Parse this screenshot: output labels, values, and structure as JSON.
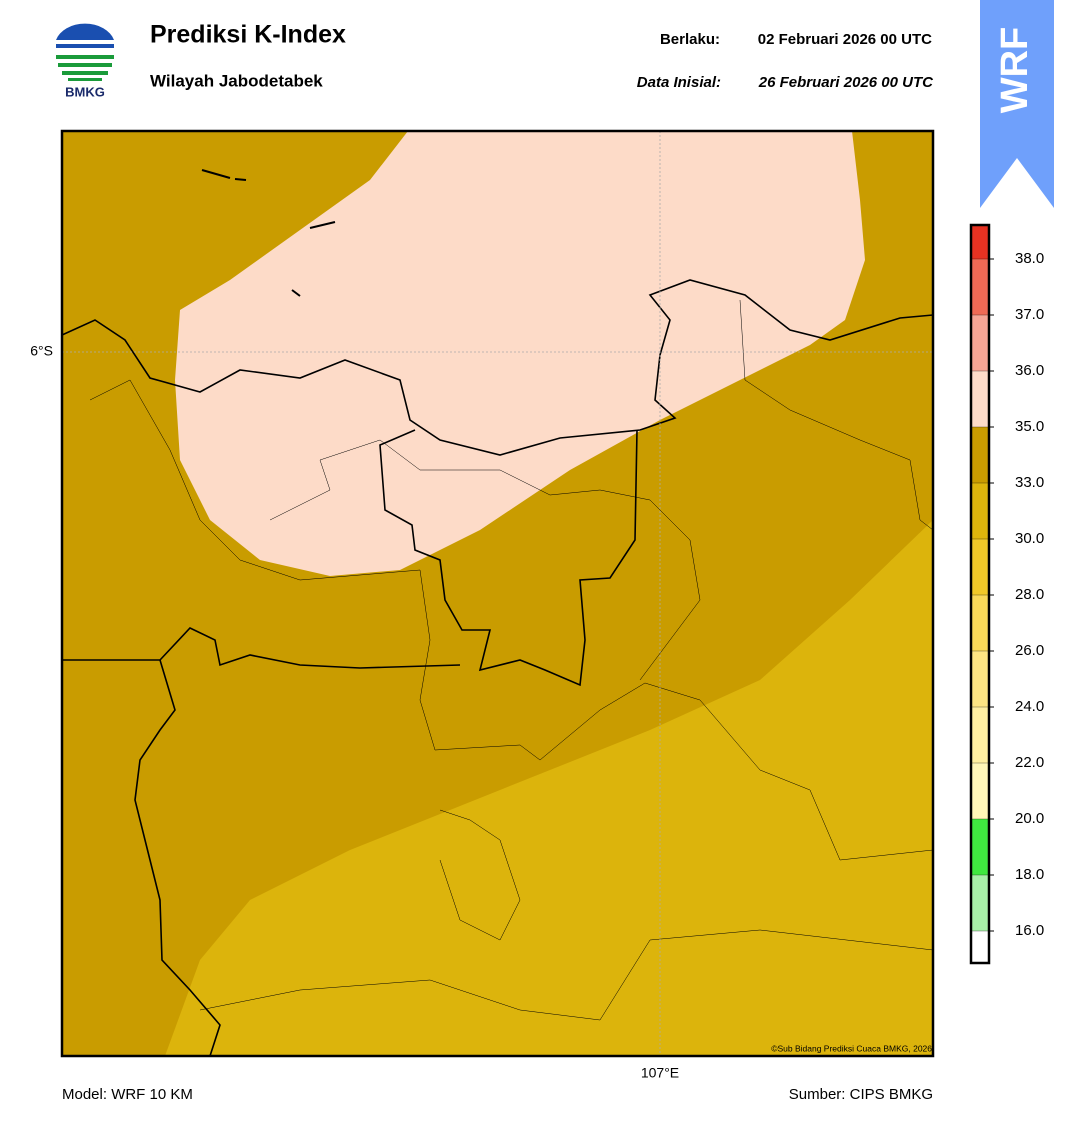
{
  "header": {
    "logo_text": "BMKG",
    "title": "Prediksi K-Index",
    "subtitle": "Wilayah Jabodetabek",
    "valid_label": "Berlaku:",
    "valid_time": "02 Februari 2026 00 UTC",
    "init_label": "Data Inisial:",
    "init_time": "26 Februari 2026 00 UTC",
    "badge": "WRF"
  },
  "map": {
    "lat_label": "6°S",
    "lon_label": "107°E",
    "credit": "©Sub Bidang Prediksi Cuaca BMKG, 2026"
  },
  "colorbar": {
    "ticks": [
      {
        "value": 16,
        "label": "16.0"
      },
      {
        "value": 18,
        "label": "18.0"
      },
      {
        "value": 20,
        "label": "20.0"
      },
      {
        "value": 22,
        "label": "22.0"
      },
      {
        "value": 24,
        "label": "24.0"
      },
      {
        "value": 26,
        "label": "26.0"
      },
      {
        "value": 28,
        "label": "28.0"
      },
      {
        "value": 30,
        "label": "30.0"
      },
      {
        "value": 33,
        "label": "33.0"
      },
      {
        "value": 35,
        "label": "35.0"
      },
      {
        "value": 36,
        "label": "36.0"
      },
      {
        "value": 37,
        "label": "37.0"
      },
      {
        "value": 38,
        "label": "38.0"
      }
    ],
    "colors": [
      "#ffffff",
      "#a8f0a8",
      "#40e840",
      "#fff6b8",
      "#ffefa0",
      "#fde583",
      "#f8d858",
      "#f0c828",
      "#ddb50c",
      "#c99c00",
      "#fddbc8",
      "#f7a595",
      "#f06a55",
      "#e63222"
    ]
  },
  "footer": {
    "model": "Model: WRF 10 KM",
    "source": "Sumber: CIPS BMKG"
  }
}
